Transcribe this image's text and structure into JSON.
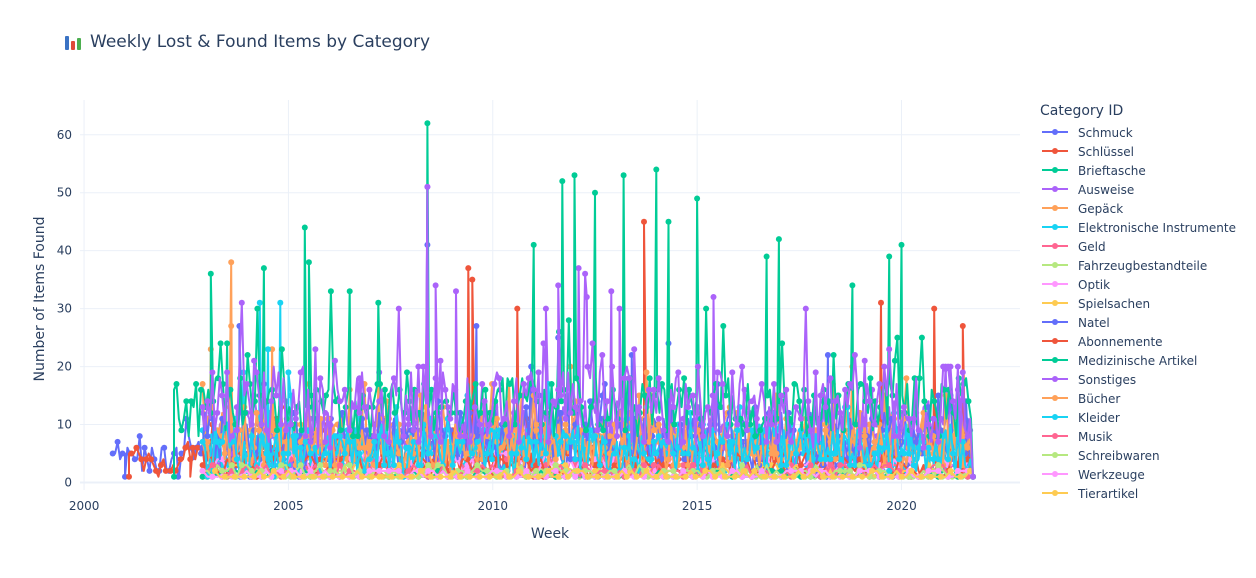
{
  "header": {
    "title": "Weekly Lost & Found Items by Category",
    "title_icon": "bar-chart-icon"
  },
  "chart_data": {
    "type": "line",
    "title": "Weekly Lost & Found Items by Category",
    "xlabel": "Week",
    "ylabel": "Number of Items Found",
    "xlim": [
      1999.9,
      2022.9
    ],
    "ylim": [
      -1.3,
      66
    ],
    "x_ticks": [
      2000,
      2005,
      2010,
      2015,
      2020
    ],
    "y_ticks": [
      0,
      10,
      20,
      30,
      40,
      50,
      60
    ],
    "grid": true,
    "legend_title": "Category ID",
    "legend_position": "right",
    "series": [
      {
        "name": "Schmuck",
        "color": "#636efa",
        "band": [
          1,
          8
        ],
        "start": 2000.7,
        "end": 2021.7,
        "peaks": [
          [
            2001.0,
            1
          ],
          [
            2002.3,
            1
          ],
          [
            2008.4,
            41
          ],
          [
            2011.6,
            25
          ],
          [
            2014.3,
            24
          ],
          [
            2018.2,
            22
          ],
          [
            2021.4,
            14
          ]
        ]
      },
      {
        "name": "Schlüssel",
        "color": "#ef553b",
        "band": [
          1,
          7
        ],
        "start": 2001.1,
        "end": 2021.7,
        "peaks": [
          [
            2001.1,
            1
          ],
          [
            2002.6,
            1
          ],
          [
            2009.4,
            37
          ],
          [
            2009.5,
            35
          ],
          [
            2010.6,
            30
          ],
          [
            2013.7,
            45
          ],
          [
            2019.5,
            31
          ],
          [
            2020.8,
            30
          ],
          [
            2021.5,
            27
          ]
        ]
      },
      {
        "name": "Brieftasche",
        "color": "#00cc96",
        "band": [
          8,
          18
        ],
        "start": 2002.2,
        "end": 2021.7,
        "peaks": [
          [
            2002.2,
            1
          ],
          [
            2003.1,
            36
          ],
          [
            2003.5,
            24
          ],
          [
            2004.4,
            37
          ],
          [
            2005.4,
            44
          ],
          [
            2005.5,
            38
          ],
          [
            2006.5,
            33
          ],
          [
            2007.2,
            31
          ],
          [
            2008.4,
            62
          ],
          [
            2011.0,
            41
          ],
          [
            2011.7,
            52
          ],
          [
            2012.0,
            53
          ],
          [
            2012.5,
            50
          ],
          [
            2013.2,
            53
          ],
          [
            2014.0,
            54
          ],
          [
            2014.3,
            45
          ],
          [
            2015.0,
            49
          ],
          [
            2016.7,
            39
          ],
          [
            2017.0,
            42
          ],
          [
            2018.8,
            34
          ],
          [
            2019.7,
            39
          ],
          [
            2020.0,
            41
          ]
        ]
      },
      {
        "name": "Ausweise",
        "color": "#ab63fa",
        "band": [
          3,
          14
        ],
        "start": 2002.9,
        "end": 2021.7,
        "peaks": [
          [
            2008.4,
            51
          ],
          [
            2008.6,
            34
          ],
          [
            2009.1,
            33
          ],
          [
            2011.3,
            30
          ],
          [
            2012.1,
            37
          ],
          [
            2012.9,
            33
          ],
          [
            2015.4,
            32
          ]
        ]
      },
      {
        "name": "Gepäck",
        "color": "#ffa15a",
        "band": [
          4,
          12
        ],
        "start": 2002.9,
        "end": 2021.7,
        "peaks": [
          [
            2003.6,
            38
          ],
          [
            2003.1,
            23
          ],
          [
            2005.5,
            17
          ],
          [
            2007.2,
            16
          ]
        ]
      },
      {
        "name": "Elektronische Instrumente",
        "color": "#19d3f3",
        "band": [
          2,
          9
        ],
        "start": 2002.9,
        "end": 2021.7,
        "peaks": [
          [
            2004.3,
            31
          ],
          [
            2004.8,
            31
          ],
          [
            2003.9,
            19
          ]
        ]
      },
      {
        "name": "Geld",
        "color": "#ff6692",
        "band": [
          1,
          4
        ],
        "start": 2002.9,
        "end": 2021.7,
        "peaks": []
      },
      {
        "name": "Fahrzeugbestandteile",
        "color": "#b6e880",
        "band": [
          0.5,
          2
        ],
        "start": 2003.0,
        "end": 2021.7,
        "peaks": []
      },
      {
        "name": "Optik",
        "color": "#ff97ff",
        "band": [
          1,
          5
        ],
        "start": 2002.9,
        "end": 2021.7,
        "peaks": []
      },
      {
        "name": "Spielsachen",
        "color": "#fecb52",
        "band": [
          0.5,
          3
        ],
        "start": 2002.9,
        "end": 2021.7,
        "peaks": []
      },
      {
        "name": "Natel",
        "color": "#636efa",
        "band": [
          3,
          12
        ],
        "start": 2002.9,
        "end": 2021.7,
        "peaks": [
          [
            2003.8,
            27
          ],
          [
            2009.6,
            27
          ],
          [
            2013.4,
            22
          ]
        ]
      },
      {
        "name": "Abonnemente",
        "color": "#ef553b",
        "band": [
          1,
          5
        ],
        "start": 2002.9,
        "end": 2021.7,
        "peaks": []
      },
      {
        "name": "Medizinische Artikel",
        "color": "#00cc96",
        "band": [
          0.5,
          2
        ],
        "start": 2002.9,
        "end": 2021.7,
        "peaks": []
      },
      {
        "name": "Sonstiges",
        "color": "#ab63fa",
        "band": [
          6,
          20
        ],
        "start": 2002.9,
        "end": 2021.7,
        "peaks": [
          [
            2008.4,
            51
          ],
          [
            2011.6,
            34
          ],
          [
            2012.3,
            32
          ],
          [
            2013.1,
            30
          ]
        ]
      },
      {
        "name": "Bücher",
        "color": "#ffa15a",
        "band": [
          2,
          10
        ],
        "start": 2002.9,
        "end": 2021.7,
        "peaks": [
          [
            2003.6,
            27
          ],
          [
            2004.6,
            23
          ]
        ]
      },
      {
        "name": "Kleider",
        "color": "#19d3f3",
        "band": [
          1,
          10
        ],
        "start": 2002.9,
        "end": 2021.7,
        "peaks": [
          [
            2004.5,
            23
          ],
          [
            2005.0,
            19
          ]
        ]
      },
      {
        "name": "Musik",
        "color": "#ff6692",
        "band": [
          0.5,
          3
        ],
        "start": 2002.9,
        "end": 2021.7,
        "peaks": []
      },
      {
        "name": "Schreibwaren",
        "color": "#b6e880",
        "band": [
          0.5,
          3
        ],
        "start": 2002.9,
        "end": 2021.7,
        "peaks": []
      },
      {
        "name": "Werkzeuge",
        "color": "#ff97ff",
        "band": [
          0.5,
          2
        ],
        "start": 2002.9,
        "end": 2021.7,
        "peaks": []
      },
      {
        "name": "Tierartikel",
        "color": "#fecb52",
        "band": [
          0.5,
          2
        ],
        "start": 2003.2,
        "end": 2021.7,
        "peaks": []
      }
    ]
  }
}
